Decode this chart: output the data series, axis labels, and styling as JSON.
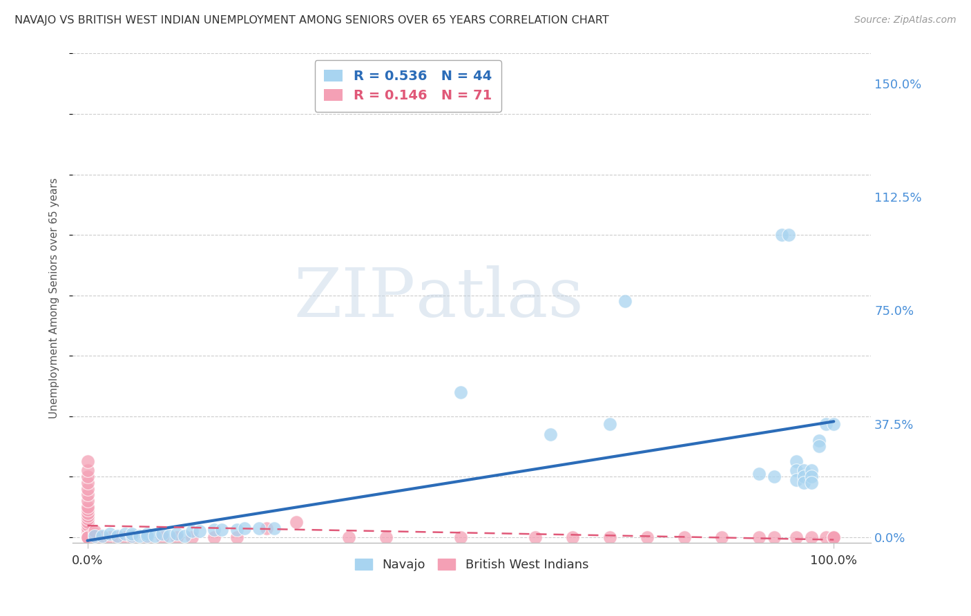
{
  "title": "NAVAJO VS BRITISH WEST INDIAN UNEMPLOYMENT AMONG SENIORS OVER 65 YEARS CORRELATION CHART",
  "source": "Source: ZipAtlas.com",
  "ylabel": "Unemployment Among Seniors over 65 years",
  "xlim": [
    -0.02,
    1.05
  ],
  "ylim": [
    -0.02,
    1.6
  ],
  "xtick_positions": [
    0.0,
    1.0
  ],
  "xtick_labels": [
    "0.0%",
    "100.0%"
  ],
  "ytick_positions": [
    0.0,
    0.375,
    0.75,
    1.125,
    1.5
  ],
  "ytick_labels": [
    "0.0%",
    "37.5%",
    "75.0%",
    "112.5%",
    "150.0%"
  ],
  "navajo_R": 0.536,
  "navajo_N": 44,
  "bwi_R": 0.146,
  "bwi_N": 71,
  "navajo_color": "#a8d4f0",
  "bwi_color": "#f4a0b5",
  "navajo_line_color": "#2b6cb8",
  "bwi_line_color": "#e05878",
  "watermark_zip": "ZIP",
  "watermark_atlas": "atlas",
  "background_color": "#ffffff",
  "grid_color": "#cccccc",
  "navajo_x": [
    0.01,
    0.02,
    0.03,
    0.04,
    0.05,
    0.06,
    0.06,
    0.07,
    0.08,
    0.08,
    0.09,
    0.1,
    0.11,
    0.12,
    0.13,
    0.14,
    0.15,
    0.17,
    0.18,
    0.2,
    0.21,
    0.23,
    0.25,
    0.5,
    0.62,
    0.7,
    0.72,
    0.9,
    0.92,
    0.93,
    0.94,
    0.95,
    0.95,
    0.95,
    0.96,
    0.96,
    0.96,
    0.97,
    0.97,
    0.97,
    0.98,
    0.98,
    0.99,
    1.0
  ],
  "navajo_y": [
    0.005,
    0.005,
    0.01,
    0.005,
    0.01,
    0.005,
    0.01,
    0.005,
    0.01,
    0.005,
    0.005,
    0.01,
    0.005,
    0.01,
    0.005,
    0.02,
    0.02,
    0.025,
    0.025,
    0.025,
    0.03,
    0.03,
    0.03,
    0.48,
    0.34,
    0.375,
    0.78,
    0.21,
    0.2,
    1.0,
    1.0,
    0.25,
    0.22,
    0.19,
    0.22,
    0.2,
    0.18,
    0.22,
    0.2,
    0.18,
    0.32,
    0.3,
    0.375,
    0.375
  ],
  "bwi_x": [
    0.0,
    0.0,
    0.0,
    0.0,
    0.0,
    0.0,
    0.0,
    0.0,
    0.0,
    0.0,
    0.0,
    0.0,
    0.0,
    0.0,
    0.0,
    0.0,
    0.0,
    0.0,
    0.0,
    0.0,
    0.0,
    0.0,
    0.0,
    0.0,
    0.0,
    0.0,
    0.0,
    0.0,
    0.0,
    0.0,
    0.0,
    0.0,
    0.0,
    0.0,
    0.0,
    0.0,
    0.0,
    0.01,
    0.01,
    0.01,
    0.02,
    0.03,
    0.04,
    0.05,
    0.06,
    0.08,
    0.1,
    0.12,
    0.14,
    0.17,
    0.2,
    0.24,
    0.28,
    0.35,
    0.4,
    0.5,
    0.6,
    0.65,
    0.7,
    0.75,
    0.8,
    0.85,
    0.9,
    0.92,
    0.95,
    0.97,
    0.99,
    1.0,
    1.0,
    1.0,
    1.0
  ],
  "bwi_y": [
    0.0,
    0.0,
    0.0,
    0.0,
    0.0,
    0.0,
    0.0,
    0.0,
    0.0,
    0.0,
    0.0,
    0.0,
    0.01,
    0.01,
    0.02,
    0.02,
    0.03,
    0.04,
    0.05,
    0.06,
    0.07,
    0.08,
    0.09,
    0.1,
    0.12,
    0.14,
    0.16,
    0.18,
    0.2,
    0.22,
    0.25,
    0.0,
    0.0,
    0.0,
    0.0,
    0.0,
    0.0,
    0.0,
    0.01,
    0.02,
    0.0,
    0.0,
    0.0,
    0.0,
    0.0,
    0.0,
    0.0,
    0.0,
    0.0,
    0.0,
    0.0,
    0.03,
    0.05,
    0.0,
    0.0,
    0.0,
    0.0,
    0.0,
    0.0,
    0.0,
    0.0,
    0.0,
    0.0,
    0.0,
    0.0,
    0.0,
    0.0,
    0.0,
    0.0,
    0.0,
    0.0
  ]
}
